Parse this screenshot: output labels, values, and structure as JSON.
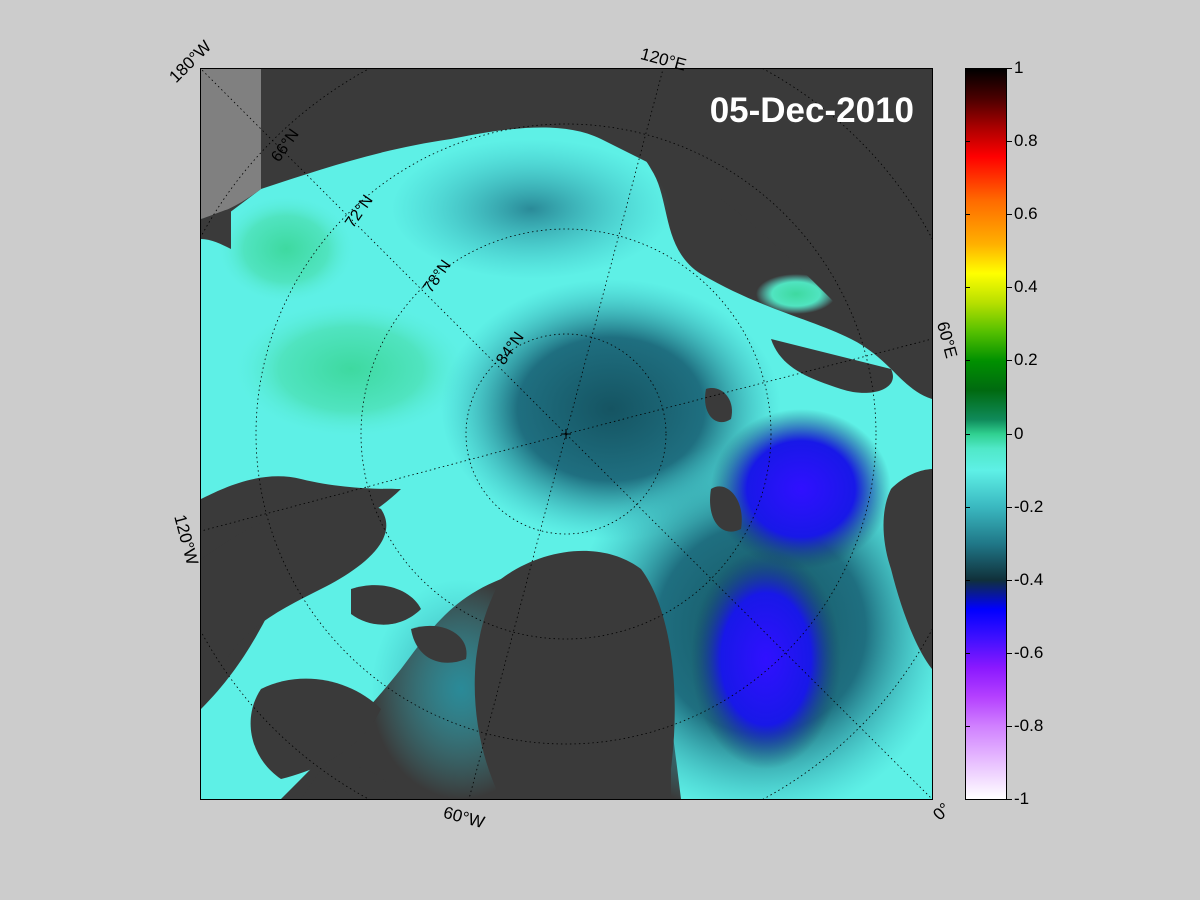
{
  "map": {
    "date_stamp": "05-Dec-2010",
    "longitude_labels": [
      "180°W",
      "120°E",
      "60°E",
      "0°",
      "60°W",
      "120°W"
    ],
    "latitude_labels": [
      "66°N",
      "72°N",
      "78°N",
      "84°N"
    ]
  },
  "colorbar": {
    "ticks": [
      "1",
      "0.8",
      "0.6",
      "0.4",
      "0.2",
      "0",
      "-0.2",
      "-0.4",
      "-0.6",
      "-0.8",
      "-1"
    ],
    "min": -1,
    "max": 1
  },
  "colors": {
    "land": "#3a3a3a",
    "background": "#cccccc",
    "ice_near_zero": "#5ef0e6",
    "ice_low": "#0000ff"
  }
}
